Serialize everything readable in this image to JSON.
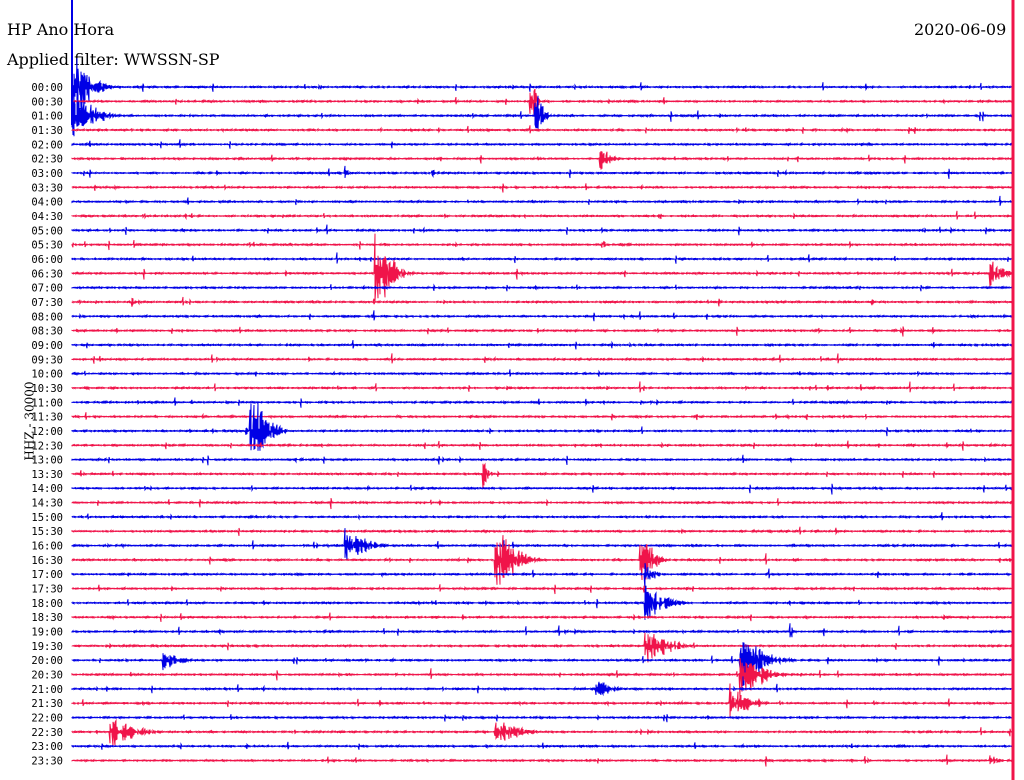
{
  "header": {
    "title": "HP Ano Hora",
    "date": "2020-06-09",
    "filter": "Applied filter: WWSSN-SP"
  },
  "channel_label": "HHZ - 30000",
  "colors": {
    "blue": "#0000e6",
    "red": "#f0144a"
  },
  "trace_labels": [
    "00:00",
    "00:30",
    "01:00",
    "01:30",
    "02:00",
    "02:30",
    "03:00",
    "03:30",
    "04:00",
    "04:30",
    "05:00",
    "05:30",
    "06:00",
    "06:30",
    "07:00",
    "07:30",
    "08:00",
    "08:30",
    "09:00",
    "09:30",
    "10:00",
    "10:30",
    "11:00",
    "11:30",
    "12:00",
    "12:30",
    "13:00",
    "13:30",
    "14:00",
    "14:30",
    "15:00",
    "15:30",
    "16:00",
    "16:30",
    "17:00",
    "17:30",
    "18:00",
    "18:30",
    "19:00",
    "19:30",
    "20:00",
    "20:30",
    "21:00",
    "21:30",
    "22:00",
    "22:30",
    "23:00",
    "23:30"
  ]
}
